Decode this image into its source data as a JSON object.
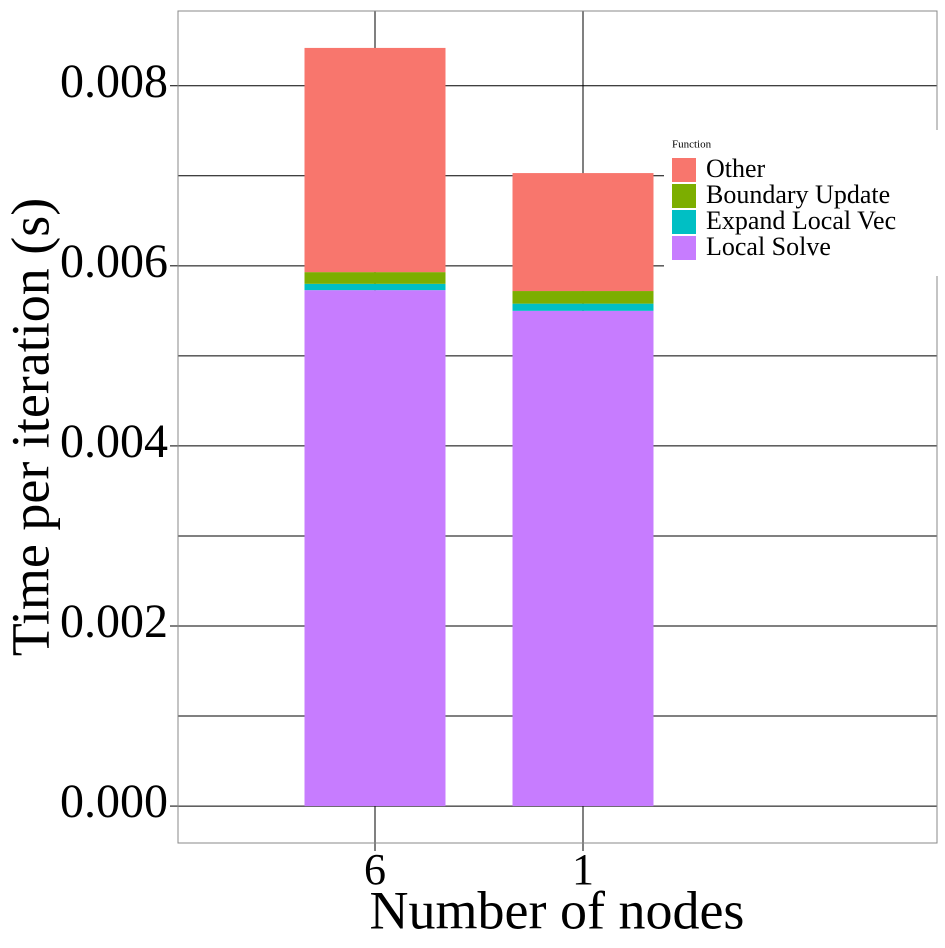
{
  "chart_data": {
    "type": "stacked-bar",
    "x_label": "Number of nodes",
    "y_label": "Time per iteration (s)",
    "legend_title": "Function",
    "categories": [
      "6",
      "1"
    ],
    "series": [
      {
        "name": "Other",
        "color": "#F8766D",
        "values": [
          0.00249,
          0.00131
        ]
      },
      {
        "name": "Boundary Update",
        "color": "#7CAE00",
        "values": [
          0.00013,
          0.00014
        ]
      },
      {
        "name": "Expand Local Vec",
        "color": "#00BFC4",
        "values": [
          7e-05,
          8e-05
        ]
      },
      {
        "name": "Local Solve",
        "color": "#C77CFF",
        "values": [
          0.00573,
          0.0055
        ]
      }
    ],
    "ylim": [
      -0.00041,
      0.00883
    ],
    "yticks": [
      {
        "value": 0,
        "label": "0.000"
      },
      {
        "value": 0.002,
        "label": "0.002"
      },
      {
        "value": 0.004,
        "label": "0.004"
      },
      {
        "value": 0.006,
        "label": "0.006"
      },
      {
        "value": 0.008,
        "label": "0.008"
      }
    ],
    "yticks_minor": [
      0.001,
      0.003,
      0.005,
      0.007
    ],
    "grid": true
  }
}
